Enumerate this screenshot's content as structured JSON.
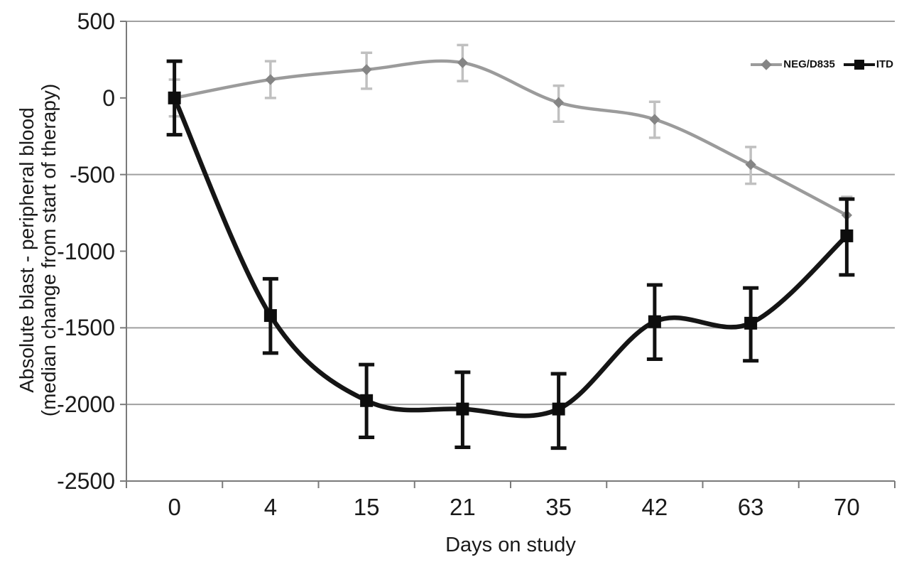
{
  "chart_data": {
    "type": "line",
    "title": "",
    "xlabel": "Days on study",
    "ylabel_line1": "Absolute blast - peripheral blood",
    "ylabel_line2": "(median change from start of therapy)",
    "x_axis_type": "category",
    "categories": [
      "0",
      "4",
      "15",
      "21",
      "35",
      "42",
      "63",
      "70"
    ],
    "y_ticks": [
      "500",
      "0",
      "-500",
      "-1000",
      "-1500",
      "-2000",
      "-2500"
    ],
    "y_tick_values": [
      500,
      0,
      -500,
      -1000,
      -1500,
      -2000,
      -2500
    ],
    "ylim": [
      -2500,
      500
    ],
    "gridline_values": [
      -500,
      -1500,
      -2000
    ],
    "grid": "horizontal only (no gridline at 0 and -1000)",
    "legend_position": "top-right-inside",
    "line_style": "smoothed",
    "series": [
      {
        "name": "NEG/D835",
        "marker": "diamond",
        "color": "#9b9b9b",
        "marker_color": "#858585",
        "error_color": "#c0c0c0",
        "values": [
          0,
          120,
          185,
          230,
          -30,
          -140,
          -435,
          -765
        ],
        "error_plus": [
          120,
          120,
          110,
          115,
          110,
          115,
          115,
          120
        ],
        "error_minus": [
          120,
          120,
          125,
          120,
          125,
          120,
          125,
          120
        ]
      },
      {
        "name": "ITD",
        "marker": "square",
        "color": "#151515",
        "marker_color": "#0d0d0d",
        "error_color": "#111111",
        "values": [
          0,
          -1420,
          -1975,
          -2030,
          -2030,
          -1460,
          -1470,
          -900
        ],
        "error_plus": [
          240,
          240,
          235,
          240,
          230,
          240,
          230,
          240
        ],
        "error_minus": [
          240,
          245,
          240,
          250,
          255,
          245,
          245,
          255
        ]
      }
    ],
    "colors": {
      "gridline": "#a0a0a0",
      "axis": "#7a7a7a",
      "text": "#1a1a1a",
      "background": "#ffffff"
    }
  }
}
